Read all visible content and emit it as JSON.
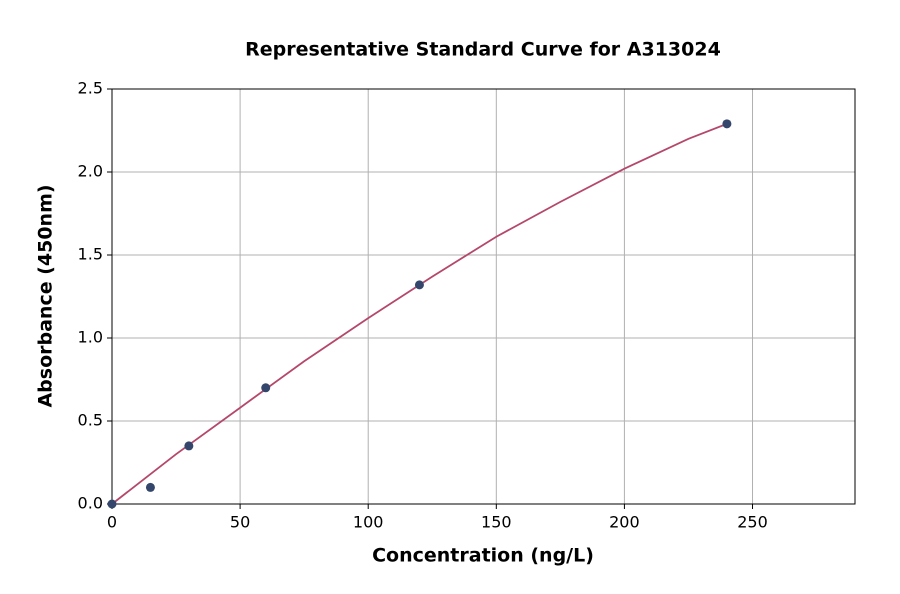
{
  "chart_data": {
    "type": "scatter",
    "title": "Representative Standard Curve for A313024",
    "x_label": "Concentration (ng/L)",
    "y_label": "Absorbance (450nm)",
    "xlim": [
      0,
      290
    ],
    "ylim": [
      0,
      2.5
    ],
    "xticks": [
      0,
      50,
      100,
      150,
      200,
      250
    ],
    "yticks": [
      {
        "value": 0,
        "label": "0.0"
      },
      {
        "value": 0.5,
        "label": "0.5"
      },
      {
        "value": 1,
        "label": "1.0"
      },
      {
        "value": 1.5,
        "label": "1.5"
      },
      {
        "value": 2,
        "label": "2.0"
      },
      {
        "value": 2.5,
        "label": "2.5"
      }
    ],
    "grid": true,
    "series": [
      {
        "mode": "markers",
        "color": "#34466b",
        "x": [
          0,
          15,
          30,
          60,
          120,
          240
        ],
        "values": [
          0,
          0.1,
          0.35,
          0.7,
          1.32,
          2.29
        ]
      },
      {
        "mode": "line",
        "color": "#b5486a",
        "x": [
          0,
          25,
          50,
          75,
          100,
          125,
          150,
          175,
          200,
          225,
          240
        ],
        "values": [
          0,
          0.3,
          0.58,
          0.86,
          1.12,
          1.37,
          1.61,
          1.82,
          2.02,
          2.2,
          2.29
        ]
      }
    ]
  }
}
